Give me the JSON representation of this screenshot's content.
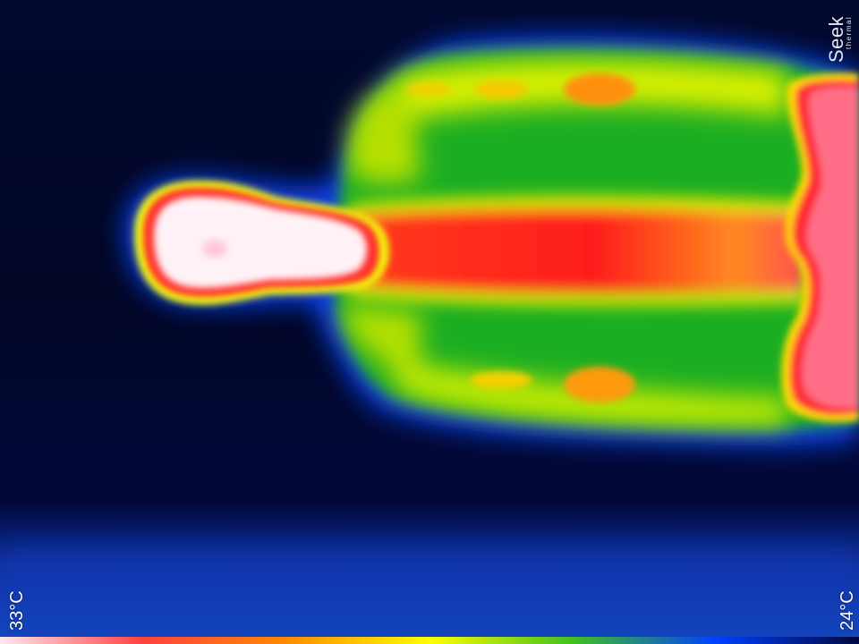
{
  "overlay": {
    "max_temperature": "33°C",
    "min_temperature": "24°C",
    "brand_name": "Seek",
    "brand_subtitle": "thermal"
  },
  "palette": {
    "white_hot": "#ffffff",
    "red": "#ff2020",
    "orange": "#ff7a10",
    "yellow": "#f0ff00",
    "green": "#1ea81e",
    "blue": "#0a30d8",
    "navy": "#020a3a"
  },
  "color_scale": [
    "#ffe8f0",
    "#ff4040",
    "#ff8a00",
    "#ffff00",
    "#40c020",
    "#0040ff",
    "#000840"
  ]
}
